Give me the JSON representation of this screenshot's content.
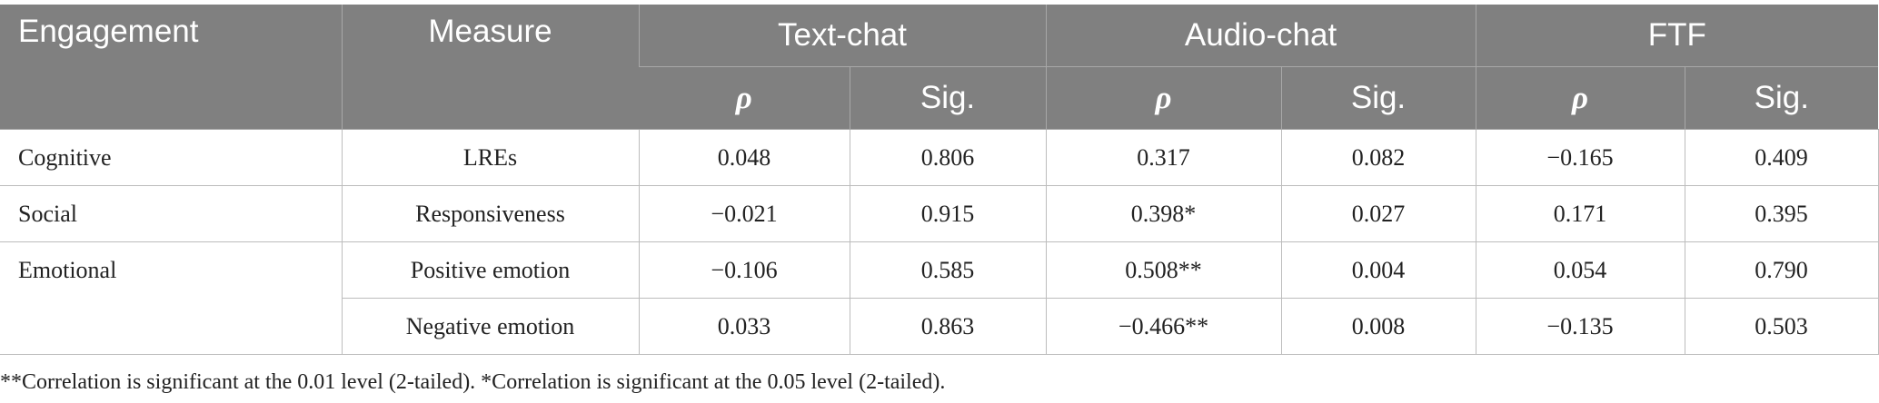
{
  "table": {
    "header": {
      "engagement": "Engagement",
      "measure": "Measure",
      "groups": [
        "Text-chat",
        "Audio-chat",
        "FTF"
      ],
      "rho": "ρ",
      "sig": "Sig."
    },
    "rows": [
      {
        "engagement": "Cognitive",
        "measure": "LREs",
        "cells": [
          "0.048",
          "0.806",
          "0.317",
          "0.082",
          "−0.165",
          "0.409"
        ]
      },
      {
        "engagement": "Social",
        "measure": "Responsiveness",
        "cells": [
          "−0.021",
          "0.915",
          "0.398*",
          "0.027",
          "0.171",
          "0.395"
        ]
      },
      {
        "engagement": "Emotional",
        "measure": "Positive emotion",
        "cells": [
          "−0.106",
          "0.585",
          "0.508**",
          "0.004",
          "0.054",
          "0.790"
        ]
      },
      {
        "measure": "Negative emotion",
        "cells": [
          "0.033",
          "0.863",
          "−0.466**",
          "0.008",
          "−0.135",
          "0.503"
        ]
      }
    ]
  },
  "footnote": "**Correlation is significant at the 0.01 level (2-tailed). *Correlation is significant at the 0.05 level (2-tailed)."
}
